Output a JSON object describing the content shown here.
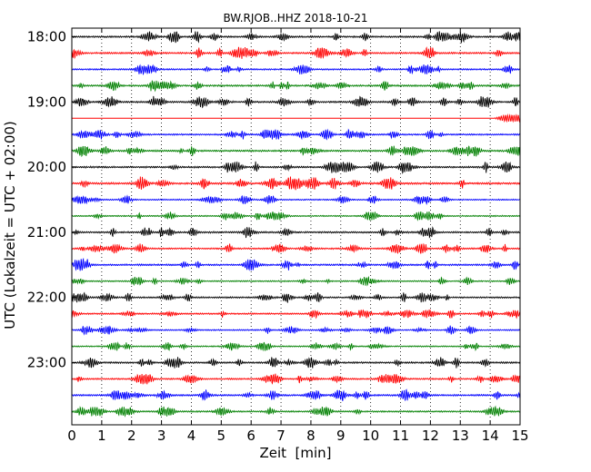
{
  "chart_data": {
    "type": "line",
    "title": "BW.RJOB..HHZ 2018-10-21",
    "xlabel": "Zeit  [min]",
    "ylabel": "UTC (Lokalzeit = UTC + 02:00)",
    "xlim": [
      0,
      15
    ],
    "xticks": [
      0,
      1,
      2,
      3,
      4,
      5,
      6,
      7,
      8,
      9,
      10,
      11,
      12,
      13,
      14,
      15
    ],
    "ytick_labels": [
      "18:00",
      "19:00",
      "20:00",
      "21:00",
      "22:00",
      "23:00"
    ],
    "grid": "vertical dotted",
    "line_colors": [
      "#000000",
      "#ff0000",
      "#0000ff",
      "#008000"
    ],
    "series": [
      {
        "row_start": "18:00",
        "color": "#000000",
        "amplitude": 0.8
      },
      {
        "row_start": "18:15",
        "color": "#ff0000",
        "amplitude": 0.8
      },
      {
        "row_start": "18:30",
        "color": "#0000ff",
        "amplitude": 0.7
      },
      {
        "row_start": "18:45",
        "color": "#008000",
        "amplitude": 0.8
      },
      {
        "row_start": "19:00",
        "color": "#000000",
        "amplitude": 0.8
      },
      {
        "row_start": "19:15",
        "color": "#ff0000",
        "amplitude": 0.0,
        "flat_until_min": 14.1
      },
      {
        "row_start": "19:30",
        "color": "#0000ff",
        "amplitude": 0.7
      },
      {
        "row_start": "19:45",
        "color": "#008000",
        "amplitude": 0.8
      },
      {
        "row_start": "20:00",
        "color": "#000000",
        "amplitude": 0.8
      },
      {
        "row_start": "20:15",
        "color": "#ff0000",
        "amplitude": 0.9
      },
      {
        "row_start": "20:30",
        "color": "#0000ff",
        "amplitude": 0.6
      },
      {
        "row_start": "20:45",
        "color": "#008000",
        "amplitude": 0.6
      },
      {
        "row_start": "21:00",
        "color": "#000000",
        "amplitude": 0.8
      },
      {
        "row_start": "21:15",
        "color": "#ff0000",
        "amplitude": 0.7
      },
      {
        "row_start": "21:30",
        "color": "#0000ff",
        "amplitude": 0.8
      },
      {
        "row_start": "21:45",
        "color": "#008000",
        "amplitude": 0.6
      },
      {
        "row_start": "22:00",
        "color": "#000000",
        "amplitude": 0.7
      },
      {
        "row_start": "22:15",
        "color": "#ff0000",
        "amplitude": 0.7
      },
      {
        "row_start": "22:30",
        "color": "#0000ff",
        "amplitude": 0.6
      },
      {
        "row_start": "22:45",
        "color": "#008000",
        "amplitude": 0.6
      },
      {
        "row_start": "23:00",
        "color": "#000000",
        "amplitude": 0.8
      },
      {
        "row_start": "23:15",
        "color": "#ff0000",
        "amplitude": 0.7
      },
      {
        "row_start": "23:30",
        "color": "#0000ff",
        "amplitude": 0.8
      },
      {
        "row_start": "23:45",
        "color": "#008000",
        "amplitude": 0.7
      }
    ]
  }
}
